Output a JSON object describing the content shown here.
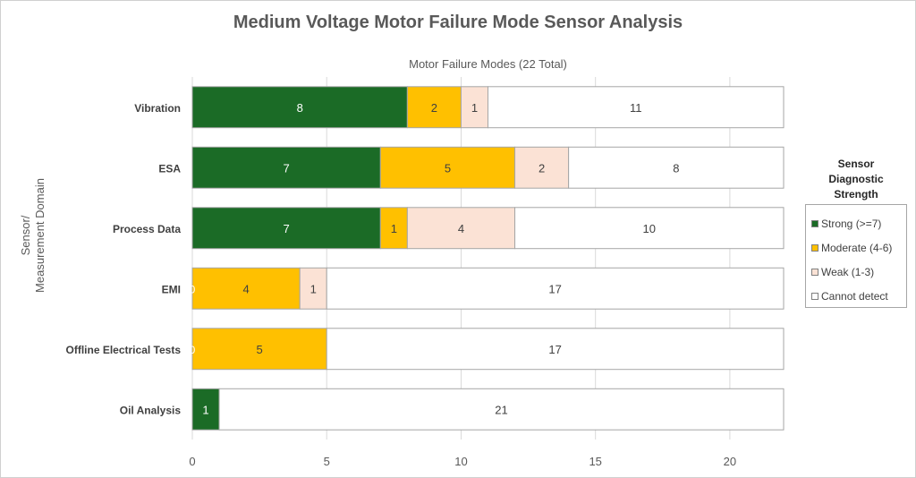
{
  "chart_data": {
    "type": "bar",
    "orientation": "horizontal",
    "stacked": true,
    "title": "Medium Voltage Motor Failure Mode Sensor Analysis",
    "xlabel": "Motor Failure Modes (22 Total)",
    "ylabel": "Sensor/\nMeasurement Domain",
    "xlim": [
      0,
      22
    ],
    "xticks": [
      0,
      5,
      10,
      15,
      20
    ],
    "categories": [
      "Vibration",
      "ESA",
      "Process Data",
      "EMI",
      "Offline Electrical Tests",
      "Oil Analysis"
    ],
    "series": [
      {
        "name": "Strong (>=7)",
        "color": "#1b6b26",
        "label_color": "#ffffff",
        "values": [
          8,
          7,
          7,
          0,
          0,
          1
        ]
      },
      {
        "name": "Moderate (4-6)",
        "color": "#ffc000",
        "label_color": "#404040",
        "values": [
          2,
          5,
          1,
          4,
          5,
          0
        ]
      },
      {
        "name": "Weak (1-3)",
        "color": "#fbe2d5",
        "label_color": "#404040",
        "values": [
          1,
          2,
          4,
          1,
          0,
          0
        ]
      },
      {
        "name": "Cannot detect",
        "color": "#ffffff",
        "label_color": "#404040",
        "values": [
          11,
          8,
          10,
          17,
          17,
          21
        ]
      }
    ],
    "zero_labels": [
      {
        "category": "EMI",
        "series": "Strong (>=7)",
        "text": "0"
      },
      {
        "category": "Offline Electrical Tests",
        "series": "Strong (>=7)",
        "text": "0"
      }
    ],
    "legend": {
      "title": "Sensor\nDiagnostic\nStrength",
      "placement": "right"
    },
    "grid": true
  }
}
